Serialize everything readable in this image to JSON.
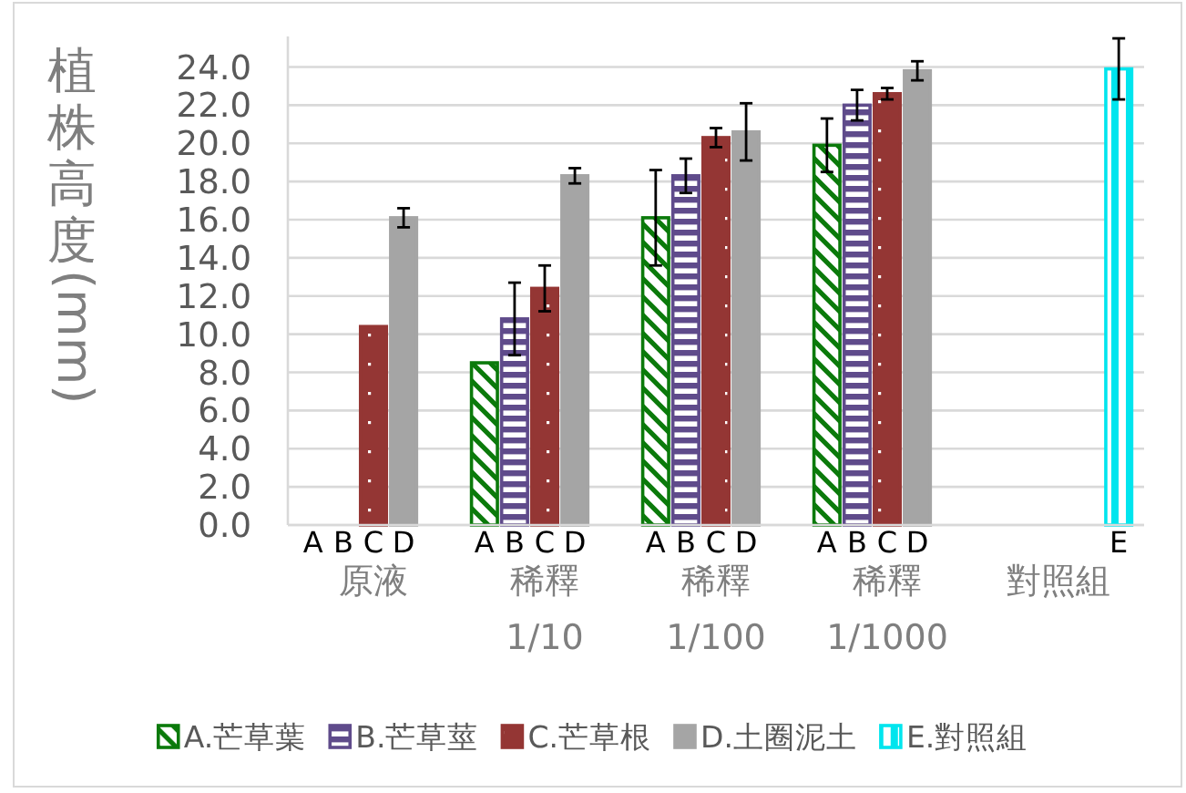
{
  "chart_data": {
    "type": "bar",
    "ylabel": "植株高度(mm)",
    "categories": [
      "原液",
      "稀釋 1/10",
      "稀釋 1/100",
      "稀釋 1/1000",
      "對照組"
    ],
    "series": [
      {
        "name": "A.芒草葉",
        "color": "#0b7a0b",
        "values": [
          0,
          8.5,
          16.1,
          19.9,
          null
        ],
        "errors": [
          null,
          null,
          2.5,
          1.4,
          null
        ]
      },
      {
        "name": "B.芒草莖",
        "color": "#5f4b8b",
        "values": [
          0,
          10.8,
          18.3,
          22.0,
          null
        ],
        "errors": [
          null,
          1.9,
          0.9,
          0.8,
          null
        ]
      },
      {
        "name": "C.芒草根",
        "color": "#943634",
        "values": [
          10.4,
          12.4,
          20.3,
          22.6,
          null
        ],
        "errors": [
          null,
          1.2,
          0.5,
          0.3,
          null
        ]
      },
      {
        "name": "D.土圈泥土",
        "color": "#a5a5a5",
        "values": [
          16.1,
          18.3,
          20.6,
          23.8,
          null
        ],
        "errors": [
          0.5,
          0.4,
          1.5,
          0.5,
          null
        ]
      },
      {
        "name": "E.對照組",
        "color": "#00e5ee",
        "values": [
          null,
          null,
          null,
          null,
          23.9
        ],
        "errors": [
          null,
          null,
          null,
          null,
          1.6
        ]
      }
    ],
    "annotations": [
      "A",
      "B",
      "C",
      "D",
      "A",
      "B",
      "C",
      "D",
      "A",
      "B",
      "C",
      "D",
      "A",
      "B",
      "C",
      "D",
      "E"
    ],
    "ylim": [
      0,
      25.6
    ],
    "yticks": [
      {
        "value": 0,
        "label": "0.0"
      },
      {
        "value": 2,
        "label": "2.0"
      },
      {
        "value": 4,
        "label": "4.0"
      },
      {
        "value": 6,
        "label": "6.0"
      },
      {
        "value": 8,
        "label": "8.0"
      },
      {
        "value": 10,
        "label": "10.0"
      },
      {
        "value": 12,
        "label": "12.0"
      },
      {
        "value": 14,
        "label": "14.0"
      },
      {
        "value": 16,
        "label": "16.0"
      },
      {
        "value": 18,
        "label": "18.0"
      },
      {
        "value": 20,
        "label": "20.0"
      },
      {
        "value": 22,
        "label": "22.0"
      },
      {
        "value": 24,
        "label": "24.0"
      }
    ],
    "grid": "y",
    "legend": "bottom"
  }
}
